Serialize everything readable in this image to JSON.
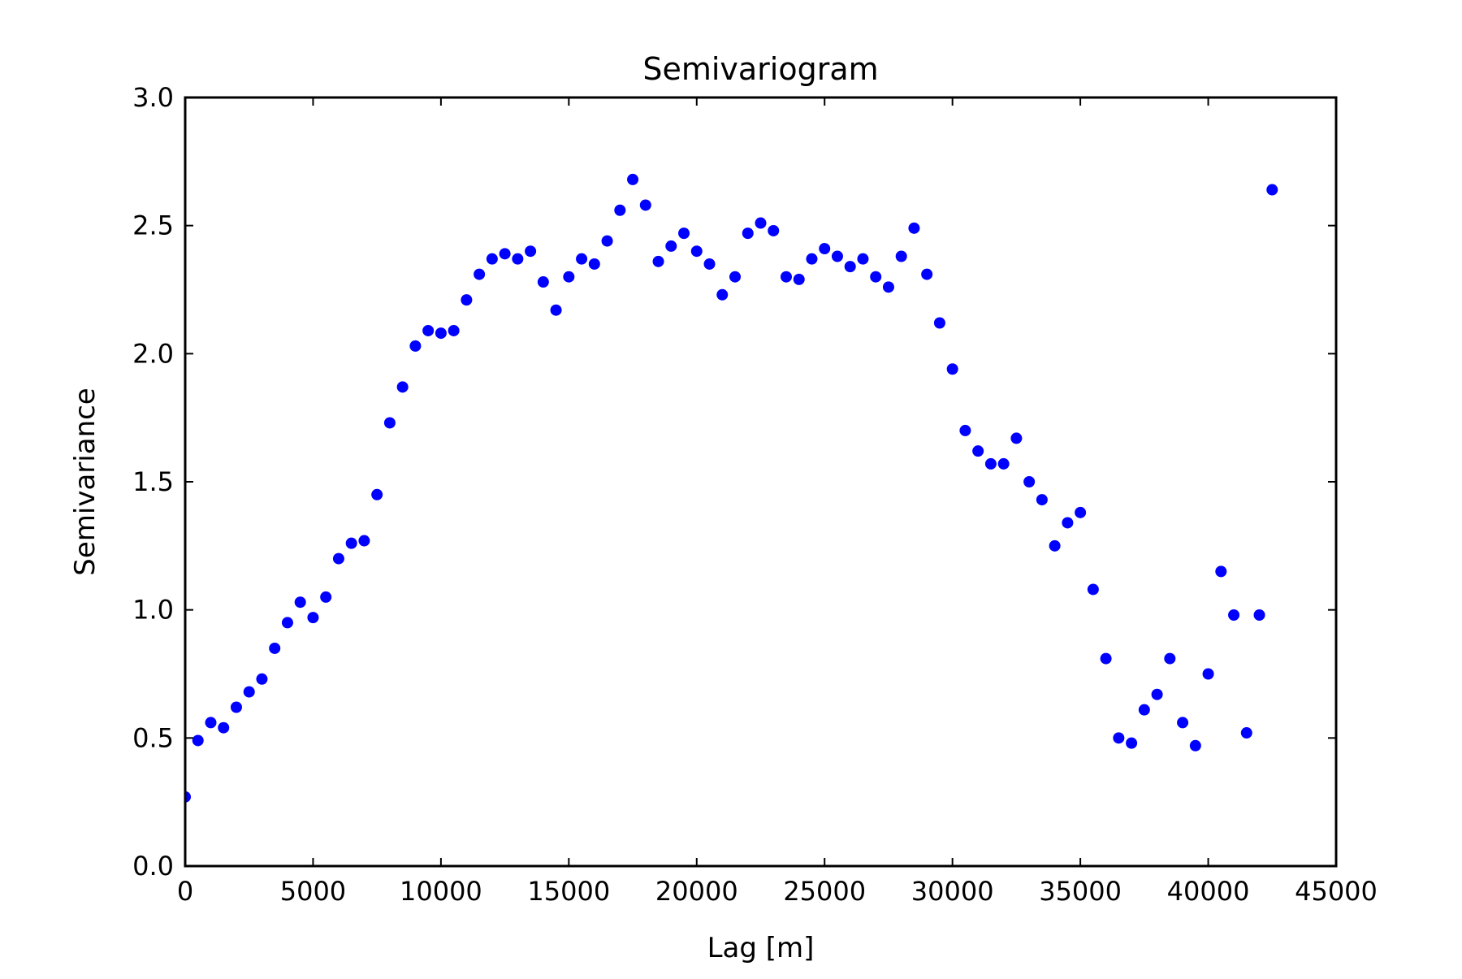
{
  "chart_data": {
    "type": "scatter",
    "title": "Semivariogram",
    "xlabel": "Lag [m]",
    "ylabel": "Semivariance",
    "xlim": [
      0,
      45000
    ],
    "ylim": [
      0.0,
      3.0
    ],
    "xticks": [
      "0",
      "5000",
      "10000",
      "15000",
      "20000",
      "25000",
      "30000",
      "35000",
      "40000",
      "45000"
    ],
    "yticks": [
      "0.0",
      "0.5",
      "1.0",
      "1.5",
      "2.0",
      "2.5",
      "3.0"
    ],
    "grid": false,
    "marker_color": "#0000ff",
    "series": [
      {
        "x": [
          0,
          500,
          1000,
          1500,
          2000,
          2500,
          3000,
          3500,
          4000,
          4500,
          5000,
          5500,
          6000,
          6500,
          7000,
          7500,
          8000,
          8500,
          9000,
          9500,
          10000,
          10500,
          11000,
          11500,
          12000,
          12500,
          13000,
          13500,
          14000,
          14500,
          15000,
          15500,
          16000,
          16500,
          17000,
          17500,
          18000,
          18500,
          19000,
          19500,
          20000,
          20500,
          21000,
          21500,
          22000,
          22500,
          23000,
          23500,
          24000,
          24500,
          25000,
          25500,
          26000,
          26500,
          27000,
          27500,
          28000,
          28500,
          29000,
          29500,
          30000,
          30500,
          31000,
          31500,
          32000,
          32500,
          33000,
          33500,
          34000,
          34500,
          35000,
          35500,
          36000,
          36500,
          37000,
          37500,
          38000,
          38500,
          39000,
          39500,
          40000,
          40500,
          41000,
          41500,
          42000,
          42500
        ],
        "y": [
          0.27,
          0.49,
          0.56,
          0.54,
          0.62,
          0.68,
          0.73,
          0.85,
          0.95,
          1.03,
          0.97,
          1.05,
          1.2,
          1.26,
          1.27,
          1.45,
          1.73,
          1.87,
          2.03,
          2.09,
          2.08,
          2.09,
          2.21,
          2.31,
          2.37,
          2.39,
          2.37,
          2.4,
          2.28,
          2.17,
          2.3,
          2.37,
          2.35,
          2.44,
          2.56,
          2.68,
          2.58,
          2.36,
          2.42,
          2.47,
          2.4,
          2.35,
          2.23,
          2.3,
          2.47,
          2.51,
          2.48,
          2.3,
          2.29,
          2.37,
          2.41,
          2.38,
          2.34,
          2.37,
          2.3,
          2.26,
          2.38,
          2.49,
          2.31,
          2.12,
          1.94,
          1.7,
          1.62,
          1.57,
          1.57,
          1.67,
          1.5,
          1.43,
          1.25,
          1.34,
          1.38,
          1.08,
          0.81,
          0.5,
          0.48,
          0.61,
          0.67,
          0.81,
          0.56,
          0.47,
          0.75,
          1.15,
          0.98,
          0.52,
          0.98,
          2.64
        ]
      }
    ]
  }
}
